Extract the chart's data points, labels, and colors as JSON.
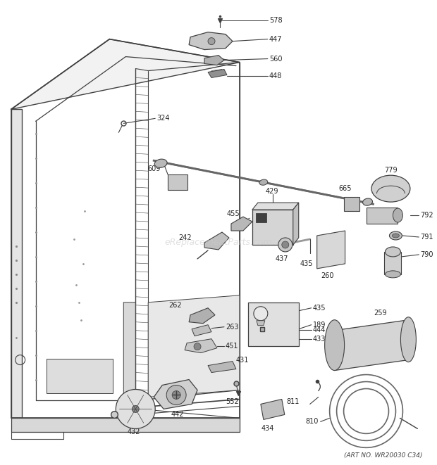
{
  "art_no": "(ART NO. WR20030 C34)",
  "watermark": "eReplacementParts.com",
  "bg": "#ffffff",
  "lc": "#404040",
  "tc": "#222222",
  "wc": "#cccccc",
  "fig_width": 6.2,
  "fig_height": 6.61,
  "dpi": 100
}
